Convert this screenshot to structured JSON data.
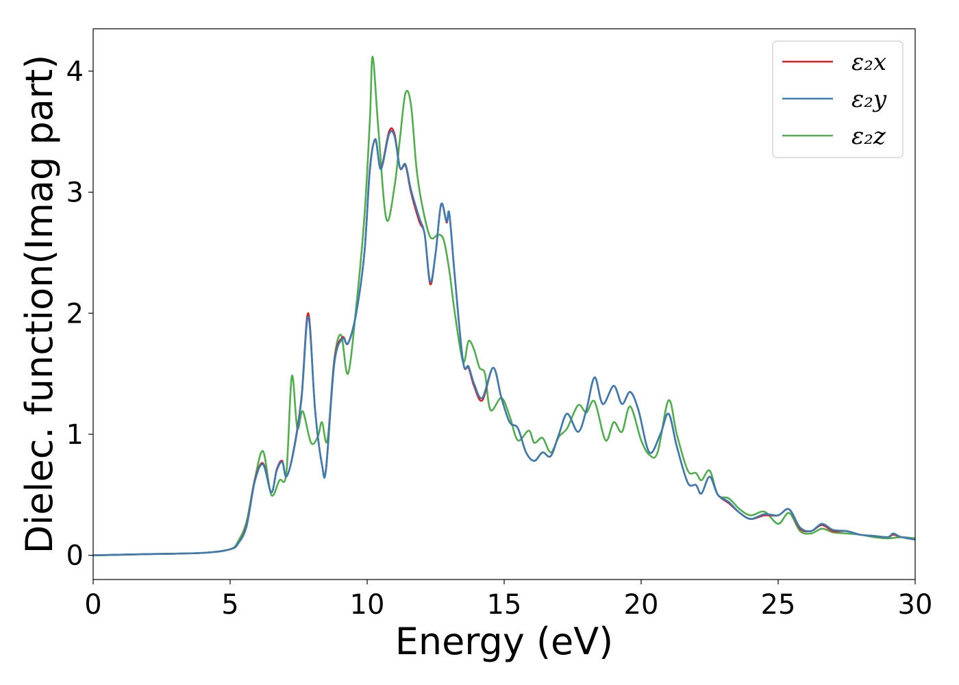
{
  "chart_data": {
    "type": "line",
    "xlabel": "Energy (eV)",
    "ylabel": "Dielec. function(Imag part)",
    "xlim": [
      0,
      30
    ],
    "ylim": [
      -0.2,
      4.35
    ],
    "x_ticks": [
      0,
      5,
      10,
      15,
      20,
      25,
      30
    ],
    "y_ticks": [
      0,
      1,
      2,
      3,
      4
    ],
    "grid": false,
    "legend_position": "top-right",
    "series": [
      {
        "name": "ε₂x",
        "color": "#e41a1c",
        "points": [
          [
            0,
            0
          ],
          [
            2,
            0.01
          ],
          [
            4,
            0.02
          ],
          [
            5,
            0.05
          ],
          [
            5.3,
            0.1
          ],
          [
            5.6,
            0.25
          ],
          [
            5.9,
            0.62
          ],
          [
            6.2,
            0.76
          ],
          [
            6.5,
            0.52
          ],
          [
            6.7,
            0.71
          ],
          [
            6.9,
            0.78
          ],
          [
            7.05,
            0.65
          ],
          [
            7.3,
            0.85
          ],
          [
            7.6,
            1.3
          ],
          [
            7.85,
            2.0
          ],
          [
            8.1,
            1.2
          ],
          [
            8.35,
            0.75
          ],
          [
            8.5,
            0.72
          ],
          [
            8.8,
            1.6
          ],
          [
            9.1,
            1.8
          ],
          [
            9.3,
            1.75
          ],
          [
            9.6,
            2.0
          ],
          [
            9.9,
            2.5
          ],
          [
            10.1,
            3.2
          ],
          [
            10.3,
            3.43
          ],
          [
            10.5,
            3.2
          ],
          [
            10.8,
            3.5
          ],
          [
            11.0,
            3.48
          ],
          [
            11.2,
            3.2
          ],
          [
            11.4,
            3.22
          ],
          [
            11.6,
            3.0
          ],
          [
            11.9,
            2.76
          ],
          [
            12.1,
            2.65
          ],
          [
            12.3,
            2.24
          ],
          [
            12.5,
            2.5
          ],
          [
            12.7,
            2.9
          ],
          [
            12.9,
            2.75
          ],
          [
            13.0,
            2.82
          ],
          [
            13.2,
            2.3
          ],
          [
            13.5,
            1.6
          ],
          [
            13.7,
            1.55
          ],
          [
            13.9,
            1.4
          ],
          [
            14.2,
            1.28
          ],
          [
            14.6,
            1.55
          ],
          [
            14.9,
            1.3
          ],
          [
            15.2,
            1.1
          ],
          [
            15.5,
            1.05
          ],
          [
            15.8,
            0.85
          ],
          [
            16.1,
            0.78
          ],
          [
            16.4,
            0.85
          ],
          [
            16.7,
            0.82
          ],
          [
            17.0,
            1.0
          ],
          [
            17.3,
            1.17
          ],
          [
            17.7,
            1.02
          ],
          [
            18.0,
            1.2
          ],
          [
            18.3,
            1.47
          ],
          [
            18.6,
            1.25
          ],
          [
            19.0,
            1.4
          ],
          [
            19.3,
            1.25
          ],
          [
            19.6,
            1.35
          ],
          [
            19.9,
            1.2
          ],
          [
            20.3,
            0.85
          ],
          [
            20.7,
            1.0
          ],
          [
            21.0,
            1.17
          ],
          [
            21.3,
            0.9
          ],
          [
            21.7,
            0.6
          ],
          [
            22.0,
            0.58
          ],
          [
            22.2,
            0.51
          ],
          [
            22.5,
            0.65
          ],
          [
            22.8,
            0.5
          ],
          [
            23.2,
            0.43
          ],
          [
            23.6,
            0.35
          ],
          [
            24.0,
            0.3
          ],
          [
            24.5,
            0.33
          ],
          [
            25.0,
            0.33
          ],
          [
            25.4,
            0.38
          ],
          [
            25.8,
            0.22
          ],
          [
            26.2,
            0.2
          ],
          [
            26.6,
            0.25
          ],
          [
            27.0,
            0.2
          ],
          [
            27.5,
            0.2
          ],
          [
            28.0,
            0.17
          ],
          [
            28.5,
            0.16
          ],
          [
            29.0,
            0.15
          ],
          [
            29.2,
            0.17
          ],
          [
            29.5,
            0.15
          ],
          [
            30.0,
            0.13
          ]
        ]
      },
      {
        "name": "ε₂y",
        "color": "#377eb8",
        "points": [
          [
            0,
            0
          ],
          [
            2,
            0.01
          ],
          [
            4,
            0.02
          ],
          [
            5,
            0.05
          ],
          [
            5.3,
            0.1
          ],
          [
            5.6,
            0.24
          ],
          [
            5.9,
            0.61
          ],
          [
            6.2,
            0.75
          ],
          [
            6.5,
            0.52
          ],
          [
            6.7,
            0.7
          ],
          [
            6.9,
            0.77
          ],
          [
            7.05,
            0.65
          ],
          [
            7.3,
            0.84
          ],
          [
            7.6,
            1.28
          ],
          [
            7.85,
            1.97
          ],
          [
            8.1,
            1.2
          ],
          [
            8.35,
            0.75
          ],
          [
            8.5,
            0.71
          ],
          [
            8.8,
            1.58
          ],
          [
            9.1,
            1.79
          ],
          [
            9.3,
            1.75
          ],
          [
            9.6,
            2.0
          ],
          [
            9.9,
            2.5
          ],
          [
            10.1,
            3.18
          ],
          [
            10.3,
            3.44
          ],
          [
            10.5,
            3.19
          ],
          [
            10.8,
            3.48
          ],
          [
            11.0,
            3.46
          ],
          [
            11.2,
            3.2
          ],
          [
            11.4,
            3.23
          ],
          [
            11.6,
            3.02
          ],
          [
            11.9,
            2.79
          ],
          [
            12.1,
            2.65
          ],
          [
            12.3,
            2.26
          ],
          [
            12.5,
            2.5
          ],
          [
            12.7,
            2.9
          ],
          [
            12.9,
            2.76
          ],
          [
            13.0,
            2.82
          ],
          [
            13.2,
            2.3
          ],
          [
            13.5,
            1.6
          ],
          [
            13.7,
            1.56
          ],
          [
            13.9,
            1.42
          ],
          [
            14.2,
            1.3
          ],
          [
            14.6,
            1.55
          ],
          [
            14.9,
            1.3
          ],
          [
            15.2,
            1.1
          ],
          [
            15.5,
            1.05
          ],
          [
            15.8,
            0.85
          ],
          [
            16.1,
            0.78
          ],
          [
            16.4,
            0.85
          ],
          [
            16.7,
            0.82
          ],
          [
            17.0,
            1.0
          ],
          [
            17.3,
            1.17
          ],
          [
            17.7,
            1.02
          ],
          [
            18.0,
            1.2
          ],
          [
            18.3,
            1.47
          ],
          [
            18.6,
            1.25
          ],
          [
            19.0,
            1.4
          ],
          [
            19.3,
            1.25
          ],
          [
            19.6,
            1.35
          ],
          [
            19.9,
            1.2
          ],
          [
            20.3,
            0.85
          ],
          [
            20.7,
            1.0
          ],
          [
            21.0,
            1.17
          ],
          [
            21.3,
            0.9
          ],
          [
            21.7,
            0.6
          ],
          [
            22.0,
            0.58
          ],
          [
            22.2,
            0.51
          ],
          [
            22.5,
            0.65
          ],
          [
            22.8,
            0.5
          ],
          [
            23.2,
            0.44
          ],
          [
            23.6,
            0.35
          ],
          [
            24.0,
            0.3
          ],
          [
            24.5,
            0.34
          ],
          [
            25.0,
            0.33
          ],
          [
            25.4,
            0.38
          ],
          [
            25.8,
            0.23
          ],
          [
            26.2,
            0.2
          ],
          [
            26.6,
            0.26
          ],
          [
            27.0,
            0.21
          ],
          [
            27.5,
            0.2
          ],
          [
            28.0,
            0.17
          ],
          [
            28.5,
            0.16
          ],
          [
            29.0,
            0.15
          ],
          [
            29.2,
            0.18
          ],
          [
            29.5,
            0.15
          ],
          [
            30.0,
            0.13
          ]
        ]
      },
      {
        "name": "ε₂z",
        "color": "#4daf4a",
        "points": [
          [
            0,
            0
          ],
          [
            2,
            0.01
          ],
          [
            4,
            0.02
          ],
          [
            5,
            0.05
          ],
          [
            5.3,
            0.12
          ],
          [
            5.6,
            0.28
          ],
          [
            5.9,
            0.63
          ],
          [
            6.2,
            0.86
          ],
          [
            6.5,
            0.5
          ],
          [
            6.8,
            0.62
          ],
          [
            7.05,
            0.68
          ],
          [
            7.25,
            1.48
          ],
          [
            7.45,
            1.05
          ],
          [
            7.65,
            1.19
          ],
          [
            7.95,
            0.93
          ],
          [
            8.2,
            0.98
          ],
          [
            8.35,
            1.1
          ],
          [
            8.55,
            0.95
          ],
          [
            8.8,
            1.62
          ],
          [
            9.05,
            1.82
          ],
          [
            9.3,
            1.5
          ],
          [
            9.6,
            2.05
          ],
          [
            9.9,
            2.8
          ],
          [
            10.1,
            3.6
          ],
          [
            10.2,
            4.12
          ],
          [
            10.4,
            3.55
          ],
          [
            10.7,
            2.78
          ],
          [
            11.0,
            3.05
          ],
          [
            11.2,
            3.45
          ],
          [
            11.4,
            3.82
          ],
          [
            11.6,
            3.72
          ],
          [
            11.8,
            3.2
          ],
          [
            12.0,
            2.9
          ],
          [
            12.3,
            2.63
          ],
          [
            12.6,
            2.65
          ],
          [
            12.8,
            2.6
          ],
          [
            13.0,
            2.35
          ],
          [
            13.2,
            2.0
          ],
          [
            13.5,
            1.6
          ],
          [
            13.7,
            1.77
          ],
          [
            13.9,
            1.7
          ],
          [
            14.1,
            1.55
          ],
          [
            14.3,
            1.5
          ],
          [
            14.5,
            1.2
          ],
          [
            14.9,
            1.3
          ],
          [
            15.2,
            1.15
          ],
          [
            15.5,
            0.95
          ],
          [
            15.9,
            1.03
          ],
          [
            16.1,
            0.93
          ],
          [
            16.4,
            0.97
          ],
          [
            16.7,
            0.85
          ],
          [
            17.0,
            0.98
          ],
          [
            17.3,
            1.05
          ],
          [
            17.7,
            1.24
          ],
          [
            18.0,
            1.18
          ],
          [
            18.3,
            1.27
          ],
          [
            18.7,
            0.95
          ],
          [
            19.0,
            1.1
          ],
          [
            19.3,
            1.02
          ],
          [
            19.6,
            1.23
          ],
          [
            20.0,
            0.95
          ],
          [
            20.3,
            0.83
          ],
          [
            20.6,
            0.85
          ],
          [
            21.0,
            1.28
          ],
          [
            21.3,
            1.0
          ],
          [
            21.7,
            0.7
          ],
          [
            22.0,
            0.68
          ],
          [
            22.2,
            0.62
          ],
          [
            22.5,
            0.7
          ],
          [
            22.8,
            0.5
          ],
          [
            23.2,
            0.47
          ],
          [
            23.6,
            0.38
          ],
          [
            24.0,
            0.33
          ],
          [
            24.5,
            0.36
          ],
          [
            25.0,
            0.26
          ],
          [
            25.4,
            0.35
          ],
          [
            25.8,
            0.2
          ],
          [
            26.2,
            0.18
          ],
          [
            26.6,
            0.22
          ],
          [
            27.0,
            0.19
          ],
          [
            27.5,
            0.18
          ],
          [
            28.0,
            0.17
          ],
          [
            28.5,
            0.15
          ],
          [
            29.0,
            0.14
          ],
          [
            29.5,
            0.15
          ],
          [
            30.0,
            0.14
          ]
        ]
      }
    ]
  }
}
